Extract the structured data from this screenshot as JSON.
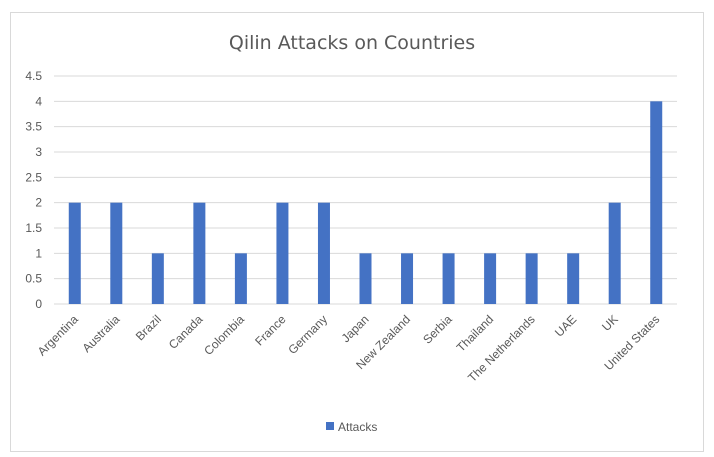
{
  "chart_data": {
    "type": "bar",
    "title": "Qilin Attacks on Countries",
    "categories": [
      "Argentina",
      "Australia",
      "Brazil",
      "Canada",
      "Colombia",
      "France",
      "Germany",
      "Japan",
      "New Zealand",
      "Serbia",
      "Thailand",
      "The Netherlands",
      "UAE",
      "UK",
      "United States"
    ],
    "series": [
      {
        "name": "Attacks",
        "values": [
          2,
          2,
          1,
          2,
          1,
          2,
          2,
          1,
          1,
          1,
          1,
          1,
          1,
          2,
          4
        ]
      }
    ],
    "ylim": [
      0,
      4.5
    ],
    "yticks": [
      "0",
      "0.5",
      "1",
      "1.5",
      "2",
      "2.5",
      "3",
      "3.5",
      "4",
      "4.5"
    ],
    "xlabel": "",
    "ylabel": "",
    "grid": true,
    "legend_position": "bottom",
    "bar_color": "#4472c4",
    "grid_color": "#d9d9d9",
    "text_color": "#595959"
  }
}
